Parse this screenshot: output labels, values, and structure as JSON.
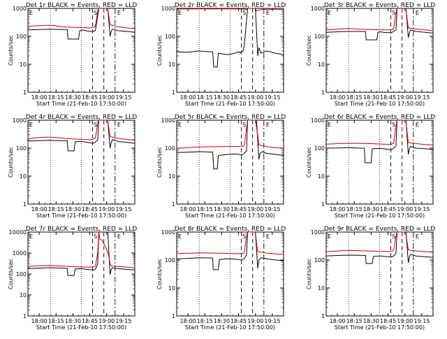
{
  "chart_data": [
    {
      "type": "line",
      "title": "Det 1r BLACK = Events, RED = LLD",
      "xlabel": "Start Time (21-Feb-10 17:50:00)",
      "ylabel": "Counts/sec",
      "xticks": [
        "18:00",
        "18:15",
        "18:30",
        "18:45",
        "19:00",
        "19:15"
      ],
      "yticks": [
        "1",
        "10",
        "100",
        "1000"
      ],
      "ylim": [
        1,
        1000
      ],
      "log_y": true,
      "markers": {
        "S": "S",
        "E1": "E",
        "E2": "E"
      },
      "series": [
        {
          "color": "#000000",
          "x": [
            0,
            10,
            20,
            30,
            35,
            35.5,
            45,
            46,
            48,
            49,
            51,
            55,
            58,
            60,
            63,
            66,
            71,
            73,
            74,
            75,
            80,
            88,
            95
          ],
          "y": [
            170,
            175,
            180,
            175,
            175,
            80,
            80,
            160,
            165,
            170,
            160,
            150,
            150,
            160,
            1000,
            1000,
            1000,
            100,
            150,
            180,
            160,
            150,
            140
          ]
        },
        {
          "color": "#cc0000",
          "x": [
            0,
            10,
            20,
            30,
            40,
            50,
            55,
            58,
            60,
            62,
            63,
            66,
            71,
            72,
            73,
            75,
            80,
            88,
            95
          ],
          "y": [
            230,
            240,
            250,
            220,
            210,
            205,
            200,
            210,
            230,
            800,
            1000,
            1000,
            1000,
            500,
            260,
            250,
            220,
            200,
            190
          ]
        }
      ]
    },
    {
      "type": "line",
      "title": "Det 2r BLACK = Events, RED = LLD",
      "xlabel": "Start Time (21-Feb-10 17:50:00)",
      "ylabel": "Counts/sec",
      "xticks": [
        "18:00",
        "18:15",
        "18:30",
        "18:45",
        "19:00",
        "19:15"
      ],
      "yticks": [
        "1",
        "10",
        "100",
        "1000"
      ],
      "ylim": [
        1,
        1000
      ],
      "log_y": true,
      "markers": {
        "S": "S",
        "E1": "E",
        "E2": "E"
      },
      "series": [
        {
          "color": "#000000",
          "x": [
            0,
            10,
            20,
            30,
            32,
            33,
            36,
            37,
            45,
            52,
            55,
            57,
            59,
            60,
            63,
            68,
            70,
            72,
            73,
            75,
            80,
            88,
            95
          ],
          "y": [
            28,
            27,
            30,
            28,
            28,
            8,
            8,
            25,
            22,
            25,
            28,
            26,
            30,
            45,
            1000,
            1000,
            1000,
            20,
            40,
            25,
            30,
            25,
            22
          ]
        },
        {
          "color": "#cc0000",
          "x": [
            0,
            10,
            20,
            30,
            40,
            50,
            58,
            60,
            62,
            63,
            66,
            70,
            71,
            72,
            75,
            80,
            88,
            95
          ],
          "y": [
            950,
            960,
            960,
            960,
            960,
            960,
            950,
            940,
            900,
            1000,
            1000,
            1000,
            800,
            850,
            900,
            920,
            920,
            900
          ]
        }
      ]
    },
    {
      "type": "line",
      "title": "Det 3r BLACK = Events, RED = LLD",
      "xlabel": "Start Time (21-Feb-10 17:50:00)",
      "ylabel": "Counts/sec",
      "xticks": [
        "18:00",
        "18:15",
        "18:30",
        "18:45",
        "19:00",
        "19:15"
      ],
      "yticks": [
        "1",
        "10",
        "100",
        "1000"
      ],
      "ylim": [
        1,
        1000
      ],
      "log_y": true,
      "markers": {
        "S": "S",
        "E1": "E",
        "E2": "E"
      },
      "series": [
        {
          "color": "#000000",
          "x": [
            0,
            10,
            20,
            30,
            35,
            35.5,
            45,
            46,
            48,
            51,
            55,
            58,
            60,
            62,
            63,
            66,
            71,
            73,
            74,
            75,
            80,
            88,
            95
          ],
          "y": [
            140,
            145,
            150,
            150,
            150,
            75,
            75,
            140,
            145,
            140,
            135,
            135,
            150,
            170,
            1000,
            1000,
            1000,
            90,
            130,
            170,
            150,
            140,
            130
          ]
        },
        {
          "color": "#cc0000",
          "x": [
            0,
            10,
            20,
            30,
            40,
            50,
            55,
            58,
            60,
            62,
            63,
            66,
            71,
            72,
            73,
            75,
            80,
            88,
            95
          ],
          "y": [
            170,
            180,
            190,
            180,
            175,
            170,
            170,
            175,
            180,
            700,
            1000,
            1000,
            1000,
            400,
            200,
            195,
            180,
            170,
            160
          ]
        }
      ]
    },
    {
      "type": "line",
      "title": "Det 4r BLACK = Events, RED = LLD",
      "xlabel": "Start Time (21-Feb-10 17:50:00)",
      "ylabel": "Counts/sec",
      "xticks": [
        "18:00",
        "18:15",
        "18:30",
        "18:45",
        "19:00",
        "19:15"
      ],
      "yticks": [
        "1",
        "10",
        "100",
        "1000"
      ],
      "ylim": [
        1,
        1000
      ],
      "log_y": true,
      "markers": {
        "S": "S",
        "E1": "E",
        "E2": "E"
      },
      "series": [
        {
          "color": "#000000",
          "x": [
            0,
            10,
            20,
            30,
            35,
            35.5,
            41,
            42,
            48,
            51,
            55,
            58,
            60,
            62,
            63,
            66,
            71,
            73,
            74,
            75,
            80,
            88,
            95
          ],
          "y": [
            180,
            185,
            190,
            185,
            185,
            80,
            80,
            170,
            175,
            165,
            155,
            150,
            165,
            200,
            1000,
            1000,
            1000,
            100,
            160,
            200,
            175,
            160,
            150
          ]
        },
        {
          "color": "#cc0000",
          "x": [
            0,
            10,
            20,
            30,
            40,
            50,
            55,
            58,
            60,
            62,
            63,
            66,
            71,
            72,
            73,
            75,
            80,
            88,
            95
          ],
          "y": [
            220,
            240,
            250,
            230,
            215,
            205,
            200,
            210,
            230,
            800,
            1000,
            1000,
            1000,
            500,
            260,
            250,
            225,
            205,
            190
          ]
        }
      ]
    },
    {
      "type": "line",
      "title": "Det 5r BLACK = Events, RED = LLD",
      "xlabel": "Start Time (21-Feb-10 17:50:00)",
      "ylabel": "Counts/sec",
      "xticks": [
        "18:00",
        "18:15",
        "18:30",
        "18:45",
        "19:00",
        "19:15"
      ],
      "yticks": [
        "1",
        "10",
        "100",
        "1000"
      ],
      "ylim": [
        1,
        1000
      ],
      "log_y": true,
      "markers": {
        "S": "S",
        "E1": "E",
        "E2": "E"
      },
      "series": [
        {
          "color": "#000000",
          "x": [
            0,
            10,
            20,
            30,
            32,
            33,
            36,
            37,
            45,
            52,
            55,
            58,
            60,
            62,
            63,
            66,
            71,
            73,
            74,
            76,
            80,
            88,
            95
          ],
          "y": [
            70,
            72,
            75,
            73,
            73,
            18,
            18,
            55,
            60,
            62,
            60,
            58,
            65,
            80,
            1000,
            1000,
            1000,
            40,
            65,
            75,
            65,
            60,
            55
          ]
        },
        {
          "color": "#cc0000",
          "x": [
            0,
            10,
            20,
            30,
            40,
            50,
            55,
            58,
            60,
            62,
            63,
            66,
            70,
            72,
            73,
            75,
            80,
            88,
            95
          ],
          "y": [
            100,
            105,
            110,
            112,
            115,
            115,
            115,
            118,
            120,
            500,
            1000,
            1000,
            1000,
            300,
            130,
            125,
            115,
            105,
            100
          ]
        }
      ]
    },
    {
      "type": "line",
      "title": "Det 6r BLACK = Events, RED = LLD",
      "xlabel": "Start Time (21-Feb-10 17:50:00)",
      "ylabel": "Counts/sec",
      "xticks": [
        "18:00",
        "18:15",
        "18:30",
        "18:45",
        "19:00",
        "19:15"
      ],
      "yticks": [
        "1",
        "10",
        "100",
        "1000"
      ],
      "ylim": [
        1,
        1000
      ],
      "log_y": true,
      "markers": {
        "S": "S",
        "E1": "E",
        "E2": "E"
      },
      "series": [
        {
          "color": "#000000",
          "x": [
            0,
            10,
            20,
            30,
            34,
            34.5,
            40,
            41,
            48,
            51,
            55,
            58,
            60,
            62,
            63,
            66,
            71,
            73,
            74,
            75,
            80,
            88,
            95
          ],
          "y": [
            100,
            102,
            105,
            100,
            100,
            30,
            30,
            95,
            98,
            95,
            90,
            88,
            100,
            120,
            1000,
            1000,
            1000,
            60,
            95,
            115,
            100,
            95,
            90
          ]
        },
        {
          "color": "#cc0000",
          "x": [
            0,
            10,
            20,
            30,
            40,
            50,
            55,
            58,
            60,
            62,
            63,
            66,
            71,
            72,
            73,
            75,
            80,
            88,
            95
          ],
          "y": [
            140,
            145,
            150,
            148,
            145,
            140,
            138,
            140,
            150,
            600,
            1000,
            1000,
            1000,
            350,
            160,
            155,
            145,
            135,
            130
          ]
        }
      ]
    },
    {
      "type": "line",
      "title": "Det 7r BLACK = Events, RED = LLD",
      "xlabel": "Start Time (21-Feb-10 17:50:00)",
      "ylabel": "Counts/sec",
      "xticks": [
        "18:00",
        "18:15",
        "18:30",
        "18:45",
        "19:00",
        "19:15"
      ],
      "yticks": [
        "1",
        "10",
        "100",
        "1000",
        "10000"
      ],
      "ylim": [
        1,
        10000
      ],
      "log_y": true,
      "markers": {
        "S": "S",
        "E1": "E",
        "E2": "E"
      },
      "series": [
        {
          "color": "#000000",
          "x": [
            0,
            10,
            20,
            30,
            35,
            35.5,
            41,
            42,
            48,
            51,
            55,
            58,
            60,
            62,
            63,
            66,
            71,
            73,
            74,
            75,
            80,
            88,
            95
          ],
          "y": [
            180,
            190,
            200,
            190,
            185,
            85,
            85,
            175,
            180,
            170,
            160,
            155,
            170,
            300,
            10000,
            10000,
            10000,
            95,
            160,
            200,
            180,
            165,
            155
          ]
        },
        {
          "color": "#cc0000",
          "x": [
            0,
            10,
            20,
            30,
            40,
            50,
            55,
            58,
            60,
            62,
            63,
            64,
            66,
            68,
            70,
            72,
            73,
            74,
            75,
            80,
            88,
            95
          ],
          "y": [
            230,
            245,
            255,
            240,
            225,
            215,
            210,
            220,
            240,
            1000,
            10000,
            4500,
            4000,
            2500,
            1500,
            700,
            300,
            250,
            240,
            230,
            210,
            195
          ]
        }
      ]
    },
    {
      "type": "line",
      "title": "Det 8r BLACK = Events, RED = LLD",
      "xlabel": "Start Time (21-Feb-10 17:50:00)",
      "ylabel": "Counts/sec",
      "xticks": [
        "18:00",
        "18:15",
        "18:30",
        "18:45",
        "19:00",
        "19:15"
      ],
      "yticks": [
        "1",
        "10",
        "100",
        "1000"
      ],
      "ylim": [
        1,
        1000
      ],
      "log_y": true,
      "markers": {
        "S": "S",
        "E1": "E",
        "E2": "E"
      },
      "series": [
        {
          "color": "#000000",
          "x": [
            0,
            10,
            20,
            30,
            32,
            32.5,
            37,
            38,
            45,
            52,
            55,
            58,
            60,
            62,
            63,
            66,
            70,
            72,
            73,
            75,
            80,
            88,
            95
          ],
          "y": [
            110,
            115,
            120,
            118,
            118,
            45,
            45,
            105,
            110,
            108,
            105,
            100,
            110,
            150,
            1000,
            1000,
            1000,
            50,
            100,
            120,
            110,
            100,
            95
          ]
        },
        {
          "color": "#cc0000",
          "x": [
            0,
            10,
            20,
            30,
            40,
            50,
            55,
            58,
            60,
            62,
            63,
            66,
            70,
            71,
            72,
            75,
            80,
            88,
            95
          ],
          "y": [
            170,
            175,
            180,
            178,
            175,
            170,
            168,
            170,
            180,
            700,
            1000,
            1000,
            1000,
            400,
            200,
            190,
            175,
            165,
            160
          ]
        }
      ]
    },
    {
      "type": "line",
      "title": "Det 9r BLACK = Events, RED = LLD",
      "xlabel": "Start Time (21-Feb-10 17:50:00)",
      "ylabel": "Counts/sec",
      "xticks": [
        "18:00",
        "18:15",
        "18:30",
        "18:45",
        "19:00",
        "19:15"
      ],
      "yticks": [
        "1",
        "10",
        "100",
        "1000"
      ],
      "ylim": [
        1,
        1000
      ],
      "log_y": true,
      "markers": {
        "S": "S",
        "E1": "E",
        "E2": "E"
      },
      "series": [
        {
          "color": "#000000",
          "x": [
            0,
            10,
            20,
            30,
            35,
            35.5,
            41,
            42,
            48,
            51,
            55,
            58,
            60,
            62,
            63,
            66,
            71,
            73,
            74,
            75,
            80,
            88,
            95
          ],
          "y": [
            140,
            145,
            150,
            148,
            145,
            75,
            75,
            135,
            140,
            135,
            130,
            128,
            140,
            170,
            1000,
            1000,
            1000,
            80,
            130,
            160,
            140,
            130,
            125
          ]
        },
        {
          "color": "#cc0000",
          "x": [
            0,
            10,
            20,
            30,
            40,
            50,
            55,
            58,
            60,
            62,
            63,
            66,
            71,
            72,
            73,
            75,
            80,
            88,
            95
          ],
          "y": [
            200,
            210,
            220,
            215,
            210,
            205,
            200,
            205,
            220,
            700,
            1000,
            1000,
            1000,
            400,
            230,
            225,
            210,
            200,
            190
          ]
        }
      ]
    }
  ]
}
